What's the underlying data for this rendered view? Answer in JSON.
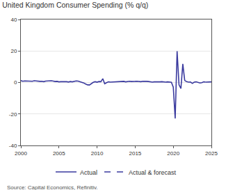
{
  "chart_data": {
    "type": "line",
    "title": "United Kingdom Consumer Spending (% q/q)",
    "source": "Source: Capital Economics, Refinitiv.",
    "xlim": [
      2000,
      2025
    ],
    "xticks": [
      2000,
      2005,
      2010,
      2015,
      2020,
      2025
    ],
    "ylim": [
      -40,
      40
    ],
    "yticks": [
      -40,
      -20,
      0,
      20,
      40
    ],
    "grid": true,
    "legend": "bottom",
    "series": [
      {
        "name": "Actual",
        "color": "#3a3a9e",
        "line_style": "solid",
        "x": [
          2000,
          2000.25,
          2000.5,
          2000.75,
          2001,
          2001.25,
          2001.5,
          2001.75,
          2002,
          2002.25,
          2002.5,
          2002.75,
          2003,
          2003.25,
          2003.5,
          2003.75,
          2004,
          2004.25,
          2004.5,
          2004.75,
          2005,
          2005.25,
          2005.5,
          2005.75,
          2006,
          2006.25,
          2006.5,
          2006.75,
          2007,
          2007.25,
          2007.5,
          2007.75,
          2008,
          2008.25,
          2008.5,
          2008.75,
          2009,
          2009.25,
          2009.5,
          2009.75,
          2010,
          2010.25,
          2010.5,
          2010.75,
          2011,
          2011.25,
          2011.5,
          2011.75,
          2012,
          2012.25,
          2012.5,
          2012.75,
          2013,
          2013.25,
          2013.5,
          2013.75,
          2014,
          2014.25,
          2014.5,
          2014.75,
          2015,
          2015.25,
          2015.5,
          2015.75,
          2016,
          2016.25,
          2016.5,
          2016.75,
          2017,
          2017.25,
          2017.5,
          2017.75,
          2018,
          2018.25,
          2018.5,
          2018.75,
          2019,
          2019.25,
          2019.5,
          2019.75,
          2020,
          2020.25,
          2020.5,
          2020.75,
          2021,
          2021.25,
          2021.5,
          2021.75,
          2022,
          2022.25,
          2022.5,
          2022.75,
          2023,
          2023.25,
          2023.5,
          2023.75,
          2024,
          2024.25
        ],
        "values": [
          1.2,
          0.8,
          1.0,
          0.9,
          0.7,
          0.9,
          0.8,
          1.1,
          0.9,
          1.0,
          0.7,
          0.8,
          0.5,
          0.9,
          1.0,
          0.8,
          1.1,
          0.9,
          0.6,
          0.7,
          0.4,
          0.5,
          0.6,
          0.7,
          0.5,
          0.3,
          0.6,
          0.4,
          0.8,
          1.0,
          0.9,
          0.5,
          0.3,
          -0.3,
          -1.0,
          -1.5,
          -1.6,
          -0.6,
          0.1,
          0.5,
          0.2,
          0.6,
          0.5,
          2.4,
          -0.8,
          -0.1,
          0.4,
          0.2,
          0.3,
          0.3,
          0.5,
          0.4,
          0.6,
          0.5,
          0.7,
          0.4,
          0.7,
          0.8,
          0.6,
          0.8,
          0.7,
          0.8,
          0.6,
          0.5,
          0.8,
          0.9,
          0.7,
          0.6,
          0.3,
          0.2,
          0.4,
          0.3,
          0.2,
          0.4,
          0.5,
          0.3,
          0.2,
          0.4,
          0.3,
          0.1,
          -3.0,
          -22.9,
          19.9,
          -1.5,
          -3.8,
          11.8,
          1.3,
          0.5,
          0.2,
          0.3,
          -0.6,
          0.2,
          0.4,
          0.1,
          -0.3,
          -0.1,
          0.4,
          0.2
        ]
      },
      {
        "name": "Actual & forecast",
        "color": "#3a3a9e",
        "line_style": "dash",
        "x": [
          2024.25,
          2024.5,
          2024.75,
          2025
        ],
        "values": [
          0.2,
          0.3,
          0.4,
          0.4
        ]
      }
    ]
  }
}
